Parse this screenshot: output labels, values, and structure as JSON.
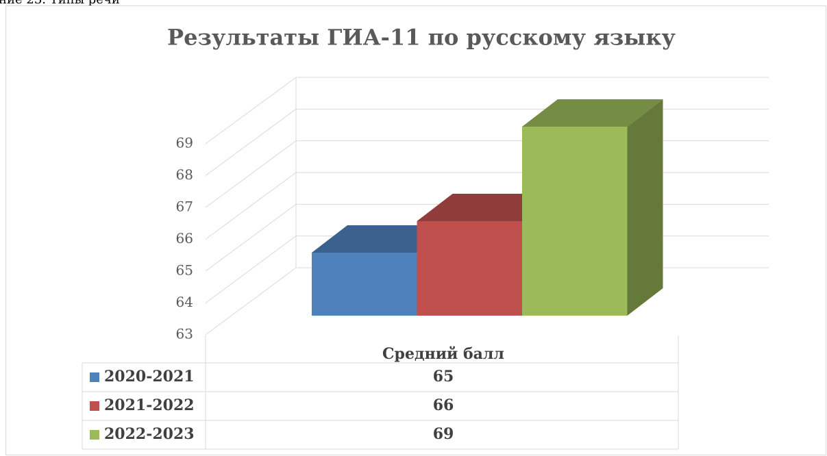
{
  "caption": "ние 23. Типы речи",
  "chart_data": {
    "type": "bar",
    "title": "Результаты ГИА-11 по русскому языку",
    "categories": [
      "Средний балл"
    ],
    "series": [
      {
        "name": "2020-2021",
        "color": "#4f81bd",
        "values": [
          65
        ]
      },
      {
        "name": "2021-2022",
        "color": "#c0504d",
        "values": [
          66
        ]
      },
      {
        "name": "2022-2023",
        "color": "#9bbb59",
        "values": [
          69
        ]
      }
    ],
    "ylim": [
      63,
      69
    ],
    "yticks": [
      63,
      64,
      65,
      66,
      67,
      68,
      69
    ],
    "grid": true,
    "data_table": true
  }
}
